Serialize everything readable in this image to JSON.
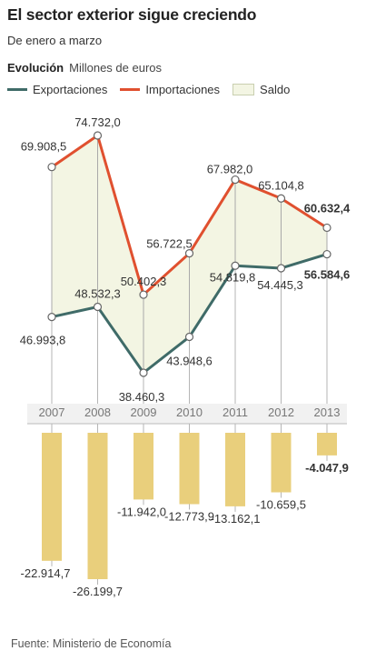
{
  "header": {
    "title": "El sector exterior sigue creciendo",
    "subtitle": "De enero a marzo",
    "section_label": "Evolución",
    "unit_label": "Millones de euros"
  },
  "legend": {
    "exports_label": "Exportaciones",
    "imports_label": "Importaciones",
    "balance_label": "Saldo"
  },
  "colors": {
    "exports": "#3f6b68",
    "imports": "#e0502f",
    "balance_fill": "#f3f5e3",
    "bars": "#e9cf7c",
    "axis": "#bbbbbb"
  },
  "chart_data": {
    "type": "line",
    "categories": [
      "2007",
      "2008",
      "2009",
      "2010",
      "2011",
      "2012",
      "2013"
    ],
    "series": [
      {
        "name": "Exportaciones",
        "values": [
          46993.8,
          48532.3,
          38460.3,
          43948.6,
          54819.8,
          54445.3,
          56584.6
        ],
        "labels": [
          "46.993,8",
          "48.532,3",
          "38.460,3",
          "43.948,6",
          "54.819,8",
          "54.445,3",
          "56.584,6"
        ]
      },
      {
        "name": "Importaciones",
        "values": [
          69908.5,
          74732.0,
          50402.3,
          56722.5,
          67982.0,
          65104.8,
          60632.4
        ],
        "labels": [
          "69.908,5",
          "74.732,0",
          "50.402,3",
          "56.722,5",
          "67.982,0",
          "65.104,8",
          "60.632,4"
        ]
      },
      {
        "name": "Saldo",
        "type": "bar",
        "values": [
          -22914.7,
          -26199.7,
          -11942.0,
          -12773.9,
          -13162.1,
          -10659.5,
          -4047.9
        ],
        "labels": [
          "-22.914,7",
          "-26.199,7",
          "-11.942,0",
          "-12.773,9",
          "-13.162,1",
          "-10.659,5",
          "-4.047,9"
        ]
      }
    ],
    "highlight_index": 6
  },
  "footer": {
    "source": "Fuente: Ministerio de Economía"
  }
}
